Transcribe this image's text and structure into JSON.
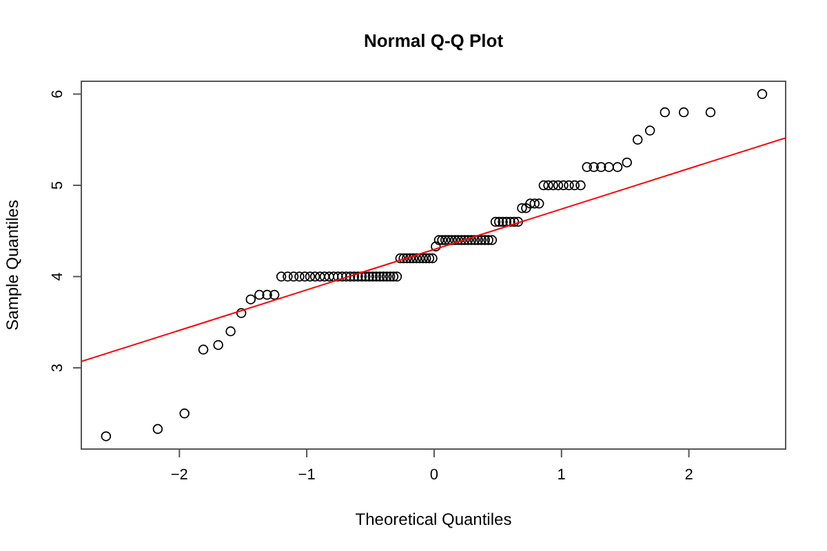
{
  "chart_data": {
    "type": "scatter",
    "title": "Normal Q-Q Plot",
    "xlabel": "Theoretical Quantiles",
    "ylabel": "Sample Quantiles",
    "xlim": [
      -2.77,
      2.76
    ],
    "ylim": [
      2.11,
      6.14
    ],
    "xticks": [
      -2,
      -1,
      0,
      1,
      2
    ],
    "yticks": [
      3,
      4,
      5,
      6
    ],
    "grid": false,
    "series": [
      {
        "marker": "circle",
        "color": "#000000",
        "x": [
          -2.576,
          -2.17,
          -1.96,
          -1.812,
          -1.695,
          -1.598,
          -1.514,
          -1.44,
          -1.372,
          -1.311,
          -1.254,
          -1.2,
          -1.15,
          -1.103,
          -1.058,
          -1.015,
          -0.974,
          -0.935,
          -0.896,
          -0.86,
          -0.824,
          -0.789,
          -0.755,
          -0.722,
          -0.69,
          -0.659,
          -0.628,
          -0.598,
          -0.568,
          -0.539,
          -0.51,
          -0.482,
          -0.454,
          -0.426,
          -0.399,
          -0.372,
          -0.345,
          -0.319,
          -0.292,
          -0.266,
          -0.24,
          -0.215,
          -0.189,
          -0.164,
          -0.138,
          -0.113,
          -0.088,
          -0.063,
          -0.038,
          -0.013,
          0.013,
          0.038,
          0.063,
          0.088,
          0.113,
          0.138,
          0.164,
          0.189,
          0.215,
          0.24,
          0.266,
          0.292,
          0.319,
          0.345,
          0.372,
          0.399,
          0.426,
          0.454,
          0.482,
          0.51,
          0.539,
          0.568,
          0.598,
          0.628,
          0.659,
          0.69,
          0.722,
          0.755,
          0.789,
          0.824,
          0.86,
          0.896,
          0.935,
          0.974,
          1.015,
          1.058,
          1.103,
          1.15,
          1.2,
          1.254,
          1.311,
          1.372,
          1.44,
          1.514,
          1.598,
          1.695,
          1.812,
          1.96,
          2.17,
          2.576
        ],
        "values": [
          2.25,
          2.33,
          2.5,
          3.2,
          3.25,
          3.4,
          3.6,
          3.75,
          3.8,
          3.8,
          3.8,
          4,
          4,
          4,
          4,
          4,
          4,
          4,
          4,
          4,
          4,
          4,
          4,
          4,
          4,
          4,
          4,
          4,
          4,
          4,
          4,
          4,
          4,
          4,
          4,
          4,
          4,
          4,
          4,
          4.2,
          4.2,
          4.2,
          4.2,
          4.2,
          4.2,
          4.2,
          4.2,
          4.2,
          4.2,
          4.2,
          4.33,
          4.4,
          4.4,
          4.4,
          4.4,
          4.4,
          4.4,
          4.4,
          4.4,
          4.4,
          4.4,
          4.4,
          4.4,
          4.4,
          4.4,
          4.4,
          4.4,
          4.4,
          4.6,
          4.6,
          4.6,
          4.6,
          4.6,
          4.6,
          4.6,
          4.75,
          4.75,
          4.8,
          4.8,
          4.8,
          5,
          5,
          5,
          5,
          5,
          5,
          5,
          5,
          5.2,
          5.2,
          5.2,
          5.2,
          5.2,
          5.25,
          5.5,
          5.6,
          5.8,
          5.8,
          5.8,
          6
        ]
      },
      {
        "type": "line",
        "color": "#ff0000",
        "x": [
          -2.77,
          2.76
        ],
        "values": [
          3.07,
          5.52
        ]
      }
    ]
  }
}
